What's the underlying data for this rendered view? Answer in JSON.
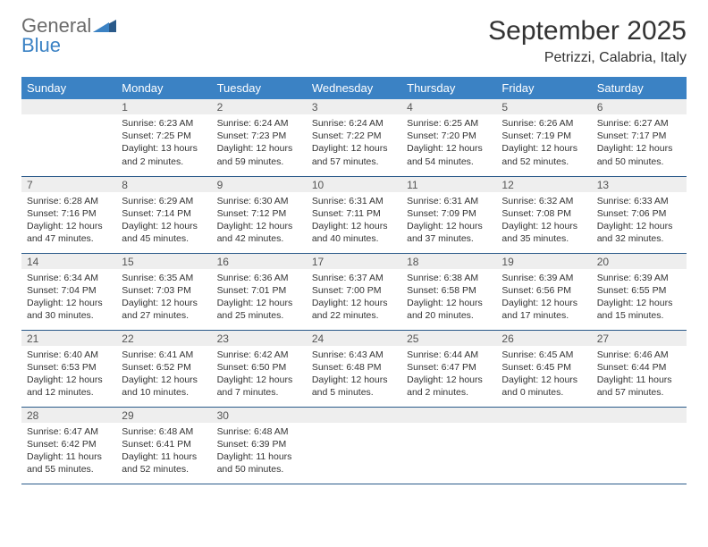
{
  "brand": {
    "text1": "General",
    "text2": "Blue"
  },
  "title": "September 2025",
  "location": "Petrizzi, Calabria, Italy",
  "colors": {
    "header_bg": "#3b82c4",
    "header_text": "#ffffff",
    "daynum_bg": "#eeeeee",
    "row_border": "#2a5a8a",
    "brand_gray": "#6b6b6b",
    "brand_blue": "#3b82c4"
  },
  "weekdays": [
    "Sunday",
    "Monday",
    "Tuesday",
    "Wednesday",
    "Thursday",
    "Friday",
    "Saturday"
  ],
  "weeks": [
    [
      {
        "n": "",
        "sunrise": "",
        "sunset": "",
        "daylight": ""
      },
      {
        "n": "1",
        "sunrise": "Sunrise: 6:23 AM",
        "sunset": "Sunset: 7:25 PM",
        "daylight": "Daylight: 13 hours and 2 minutes."
      },
      {
        "n": "2",
        "sunrise": "Sunrise: 6:24 AM",
        "sunset": "Sunset: 7:23 PM",
        "daylight": "Daylight: 12 hours and 59 minutes."
      },
      {
        "n": "3",
        "sunrise": "Sunrise: 6:24 AM",
        "sunset": "Sunset: 7:22 PM",
        "daylight": "Daylight: 12 hours and 57 minutes."
      },
      {
        "n": "4",
        "sunrise": "Sunrise: 6:25 AM",
        "sunset": "Sunset: 7:20 PM",
        "daylight": "Daylight: 12 hours and 54 minutes."
      },
      {
        "n": "5",
        "sunrise": "Sunrise: 6:26 AM",
        "sunset": "Sunset: 7:19 PM",
        "daylight": "Daylight: 12 hours and 52 minutes."
      },
      {
        "n": "6",
        "sunrise": "Sunrise: 6:27 AM",
        "sunset": "Sunset: 7:17 PM",
        "daylight": "Daylight: 12 hours and 50 minutes."
      }
    ],
    [
      {
        "n": "7",
        "sunrise": "Sunrise: 6:28 AM",
        "sunset": "Sunset: 7:16 PM",
        "daylight": "Daylight: 12 hours and 47 minutes."
      },
      {
        "n": "8",
        "sunrise": "Sunrise: 6:29 AM",
        "sunset": "Sunset: 7:14 PM",
        "daylight": "Daylight: 12 hours and 45 minutes."
      },
      {
        "n": "9",
        "sunrise": "Sunrise: 6:30 AM",
        "sunset": "Sunset: 7:12 PM",
        "daylight": "Daylight: 12 hours and 42 minutes."
      },
      {
        "n": "10",
        "sunrise": "Sunrise: 6:31 AM",
        "sunset": "Sunset: 7:11 PM",
        "daylight": "Daylight: 12 hours and 40 minutes."
      },
      {
        "n": "11",
        "sunrise": "Sunrise: 6:31 AM",
        "sunset": "Sunset: 7:09 PM",
        "daylight": "Daylight: 12 hours and 37 minutes."
      },
      {
        "n": "12",
        "sunrise": "Sunrise: 6:32 AM",
        "sunset": "Sunset: 7:08 PM",
        "daylight": "Daylight: 12 hours and 35 minutes."
      },
      {
        "n": "13",
        "sunrise": "Sunrise: 6:33 AM",
        "sunset": "Sunset: 7:06 PM",
        "daylight": "Daylight: 12 hours and 32 minutes."
      }
    ],
    [
      {
        "n": "14",
        "sunrise": "Sunrise: 6:34 AM",
        "sunset": "Sunset: 7:04 PM",
        "daylight": "Daylight: 12 hours and 30 minutes."
      },
      {
        "n": "15",
        "sunrise": "Sunrise: 6:35 AM",
        "sunset": "Sunset: 7:03 PM",
        "daylight": "Daylight: 12 hours and 27 minutes."
      },
      {
        "n": "16",
        "sunrise": "Sunrise: 6:36 AM",
        "sunset": "Sunset: 7:01 PM",
        "daylight": "Daylight: 12 hours and 25 minutes."
      },
      {
        "n": "17",
        "sunrise": "Sunrise: 6:37 AM",
        "sunset": "Sunset: 7:00 PM",
        "daylight": "Daylight: 12 hours and 22 minutes."
      },
      {
        "n": "18",
        "sunrise": "Sunrise: 6:38 AM",
        "sunset": "Sunset: 6:58 PM",
        "daylight": "Daylight: 12 hours and 20 minutes."
      },
      {
        "n": "19",
        "sunrise": "Sunrise: 6:39 AM",
        "sunset": "Sunset: 6:56 PM",
        "daylight": "Daylight: 12 hours and 17 minutes."
      },
      {
        "n": "20",
        "sunrise": "Sunrise: 6:39 AM",
        "sunset": "Sunset: 6:55 PM",
        "daylight": "Daylight: 12 hours and 15 minutes."
      }
    ],
    [
      {
        "n": "21",
        "sunrise": "Sunrise: 6:40 AM",
        "sunset": "Sunset: 6:53 PM",
        "daylight": "Daylight: 12 hours and 12 minutes."
      },
      {
        "n": "22",
        "sunrise": "Sunrise: 6:41 AM",
        "sunset": "Sunset: 6:52 PM",
        "daylight": "Daylight: 12 hours and 10 minutes."
      },
      {
        "n": "23",
        "sunrise": "Sunrise: 6:42 AM",
        "sunset": "Sunset: 6:50 PM",
        "daylight": "Daylight: 12 hours and 7 minutes."
      },
      {
        "n": "24",
        "sunrise": "Sunrise: 6:43 AM",
        "sunset": "Sunset: 6:48 PM",
        "daylight": "Daylight: 12 hours and 5 minutes."
      },
      {
        "n": "25",
        "sunrise": "Sunrise: 6:44 AM",
        "sunset": "Sunset: 6:47 PM",
        "daylight": "Daylight: 12 hours and 2 minutes."
      },
      {
        "n": "26",
        "sunrise": "Sunrise: 6:45 AM",
        "sunset": "Sunset: 6:45 PM",
        "daylight": "Daylight: 12 hours and 0 minutes."
      },
      {
        "n": "27",
        "sunrise": "Sunrise: 6:46 AM",
        "sunset": "Sunset: 6:44 PM",
        "daylight": "Daylight: 11 hours and 57 minutes."
      }
    ],
    [
      {
        "n": "28",
        "sunrise": "Sunrise: 6:47 AM",
        "sunset": "Sunset: 6:42 PM",
        "daylight": "Daylight: 11 hours and 55 minutes."
      },
      {
        "n": "29",
        "sunrise": "Sunrise: 6:48 AM",
        "sunset": "Sunset: 6:41 PM",
        "daylight": "Daylight: 11 hours and 52 minutes."
      },
      {
        "n": "30",
        "sunrise": "Sunrise: 6:48 AM",
        "sunset": "Sunset: 6:39 PM",
        "daylight": "Daylight: 11 hours and 50 minutes."
      },
      {
        "n": "",
        "sunrise": "",
        "sunset": "",
        "daylight": ""
      },
      {
        "n": "",
        "sunrise": "",
        "sunset": "",
        "daylight": ""
      },
      {
        "n": "",
        "sunrise": "",
        "sunset": "",
        "daylight": ""
      },
      {
        "n": "",
        "sunrise": "",
        "sunset": "",
        "daylight": ""
      }
    ]
  ]
}
